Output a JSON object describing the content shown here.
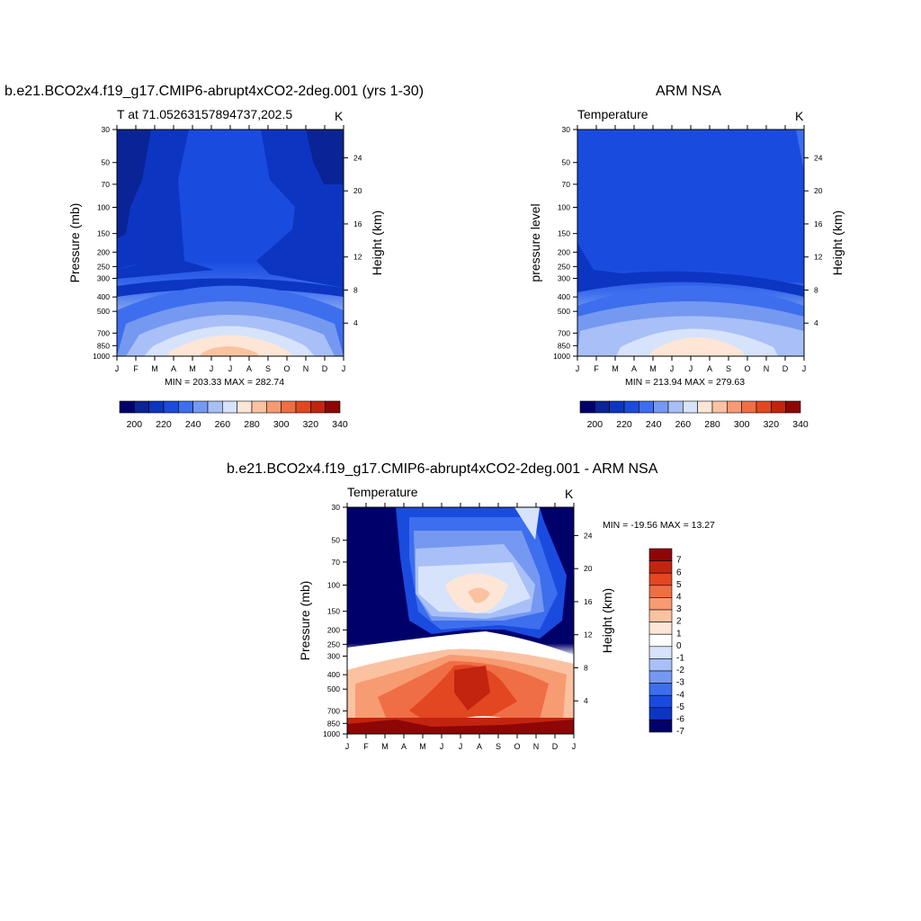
{
  "panel1": {
    "title": "b.e21.BCO2x4.f19_g17.CMIP6-abrupt4xCO2-2deg.001 (yrs 1-30)",
    "left_string": "T at 71.05263157894737,202.5",
    "units": "K",
    "ylabel": "Pressure (mb)",
    "right_label": "Height (km)",
    "stats": "MIN = 203.33 MAX = 282.74"
  },
  "panel2": {
    "title": "ARM NSA",
    "left_string": "Temperature",
    "units": "K",
    "ylabel": "pressure level",
    "right_label": "Height (km)",
    "stats": "MIN = 213.94 MAX = 279.63"
  },
  "panel3": {
    "title": "b.e21.BCO2x4.f19_g17.CMIP6-abrupt4xCO2-2deg.001 - ARM NSA",
    "left_string": "Temperature",
    "units": "K",
    "ylabel": "Pressure (mb)",
    "right_label": "Height (km)",
    "stats": "MIN = -19.56 MAX =  13.27"
  },
  "chart_data": [
    {
      "type": "heatmap",
      "x": [
        "J",
        "F",
        "M",
        "A",
        "M",
        "J",
        "J",
        "A",
        "S",
        "O",
        "N",
        "D",
        "J"
      ],
      "y_pressure_ticks": [
        30,
        50,
        70,
        100,
        150,
        200,
        250,
        300,
        400,
        500,
        700,
        850,
        1000
      ],
      "y_height_ticks_km": [
        24,
        20,
        16,
        12,
        8,
        4
      ],
      "colorbar_labels": [
        "200",
        "220",
        "240",
        "260",
        "280",
        "300",
        "320",
        "340"
      ],
      "colorbar_colors": [
        "#00006b",
        "#0a2396",
        "#0c35c2",
        "#1a4bdf",
        "#3d6eee",
        "#7599f1",
        "#a8c0f7",
        "#d6e3fb",
        "#fde6d6",
        "#fbc2a1",
        "#f79b72",
        "#f06e45",
        "#e34722",
        "#c22410",
        "#8f0606"
      ],
      "values_K": {
        "200hPa_Jan": 205,
        "200hPa_Jul": 225,
        "850hPa_Jan": 245,
        "1000hPa_Jul": 282.74,
        "min": 203.33,
        "max": 282.74
      }
    },
    {
      "type": "heatmap",
      "x": [
        "J",
        "F",
        "M",
        "A",
        "M",
        "J",
        "J",
        "A",
        "S",
        "O",
        "N",
        "D",
        "J"
      ],
      "y_pressure_ticks": [
        30,
        50,
        70,
        100,
        150,
        200,
        250,
        300,
        400,
        500,
        700,
        850,
        1000
      ],
      "y_height_ticks_km": [
        24,
        20,
        16,
        12,
        8,
        4
      ],
      "colorbar_labels": [
        "200",
        "220",
        "240",
        "260",
        "280",
        "300",
        "320",
        "340"
      ],
      "values_K": {
        "min": 213.94,
        "max": 279.63
      }
    },
    {
      "type": "heatmap",
      "x": [
        "J",
        "F",
        "M",
        "A",
        "M",
        "J",
        "J",
        "A",
        "S",
        "O",
        "N",
        "D",
        "J"
      ],
      "y_pressure_ticks": [
        30,
        50,
        70,
        100,
        150,
        200,
        250,
        300,
        400,
        500,
        700,
        850,
        1000
      ],
      "y_height_ticks_km": [
        24,
        20,
        16,
        12,
        8,
        4
      ],
      "colorbar_labels": [
        "7",
        "6",
        "5",
        "4",
        "3",
        "2",
        "1",
        "0",
        "-1",
        "-2",
        "-3",
        "-4",
        "-5",
        "-6",
        "-7"
      ],
      "colorbar_colors": [
        "#8f0606",
        "#c22410",
        "#e34722",
        "#f06e45",
        "#f79b72",
        "#fbc2a1",
        "#fde6d6",
        "#ffffff",
        "#d6e3fb",
        "#a8c0f7",
        "#7599f1",
        "#3d6eee",
        "#1a4bdf",
        "#0c35c2",
        "#00006b"
      ],
      "values_K": {
        "min": -19.56,
        "max": 13.27
      }
    }
  ]
}
